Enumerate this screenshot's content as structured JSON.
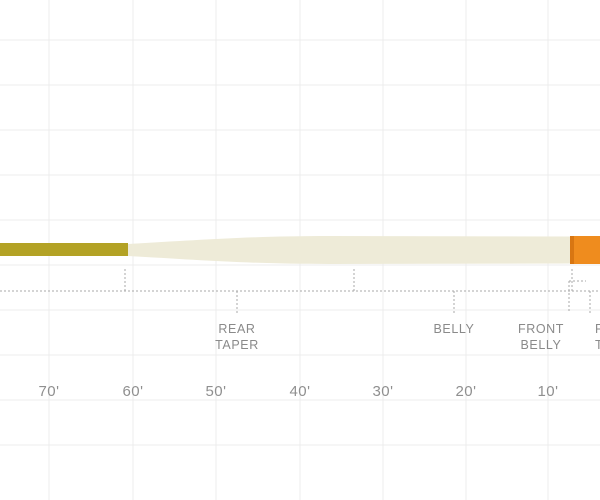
{
  "colors": {
    "running_line": "#b3a225",
    "body": "#eeebd8",
    "tip": "#ef8c1e",
    "tip_dark": "#d87612",
    "grid": "#ececec",
    "dotted": "#a8a8a8",
    "text": "#8a8a8a"
  },
  "sections": [
    {
      "line1": "REAR",
      "line2": "TAPER"
    },
    {
      "line1": "BELLY",
      "line2": ""
    },
    {
      "line1": "FRONT",
      "line2": "BELLY"
    },
    {
      "line1": "F",
      "line2": "T"
    }
  ],
  "distance_ticks": [
    "70'",
    "60'",
    "50'",
    "40'",
    "30'",
    "20'",
    "10'"
  ]
}
